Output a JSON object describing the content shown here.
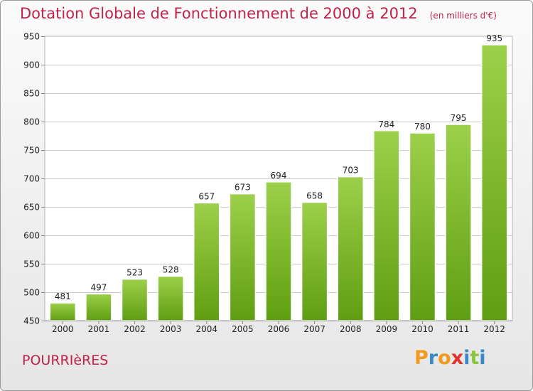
{
  "header": {
    "title": "Dotation Globale de Fonctionnement de 2000 à 2012",
    "unit": "(en milliers d'€)"
  },
  "footer": {
    "commune": "POURRIèRES",
    "logo_text": "Proxiti",
    "logo_colors": [
      "#f29a1d",
      "#3a89c9",
      "#f29a1d",
      "#e0342b",
      "#3a89c9",
      "#8cc43f",
      "#3a89c9"
    ]
  },
  "colors": {
    "accent": "#c0224a",
    "bar_top": "#9dd04a",
    "bar_bottom": "#5f9e12",
    "grid": "#c9c9c9"
  },
  "chart_data": {
    "type": "bar",
    "title": "Dotation Globale de Fonctionnement de 2000 à 2012",
    "subtitle": "(en milliers d'€)",
    "xlabel": "",
    "ylabel": "",
    "categories": [
      "2000",
      "2001",
      "2002",
      "2003",
      "2004",
      "2005",
      "2006",
      "2007",
      "2008",
      "2009",
      "2010",
      "2011",
      "2012"
    ],
    "values": [
      481,
      497,
      523,
      528,
      657,
      673,
      694,
      658,
      703,
      784,
      780,
      795,
      935
    ],
    "ylim": [
      450,
      950
    ],
    "yticks": [
      450,
      500,
      550,
      600,
      650,
      700,
      750,
      800,
      850,
      900,
      950
    ],
    "grid": true,
    "data_labels": true
  }
}
